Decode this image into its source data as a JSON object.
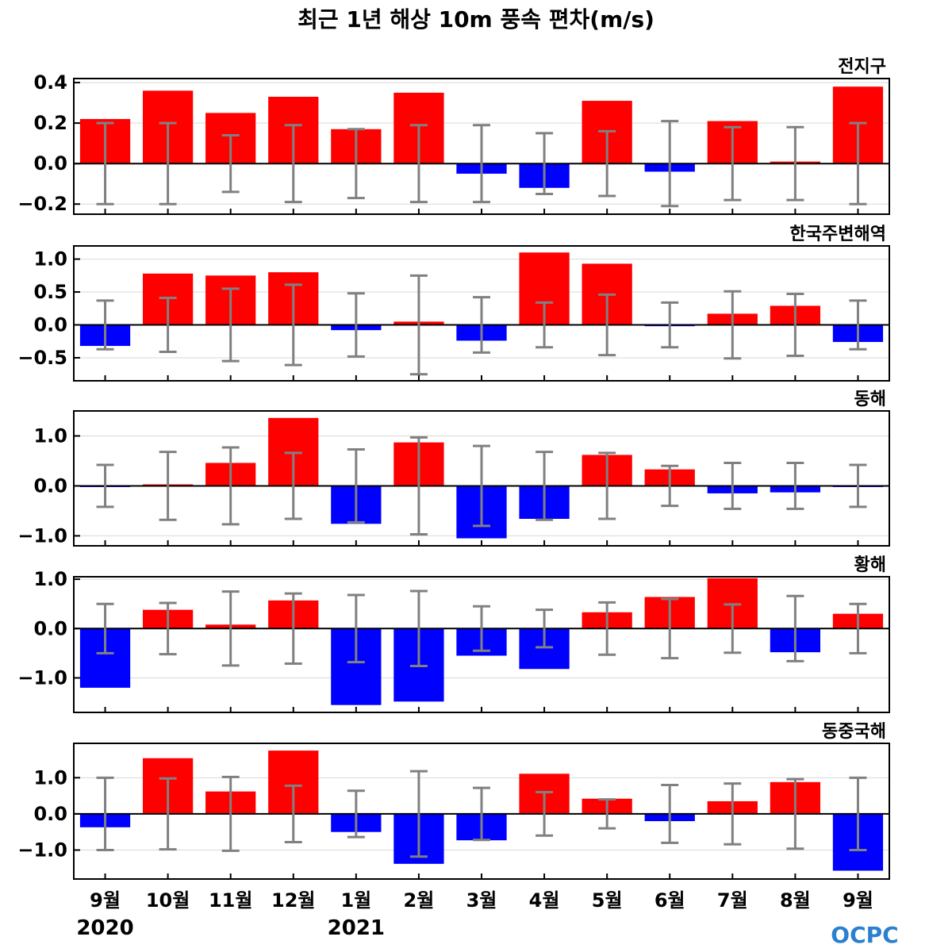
{
  "title": "최근 1년 해상 10m 풍속 편차(m/s)",
  "logo": "OCPC",
  "x_labels": [
    "9월",
    "10월",
    "11월",
    "12월",
    "1월",
    "2월",
    "3월",
    "4월",
    "5월",
    "6월",
    "7월",
    "8월",
    "9월"
  ],
  "year_labels": [
    {
      "text": "2020",
      "at_index": 0
    },
    {
      "text": "2021",
      "at_index": 4
    }
  ],
  "colors": {
    "positive": "#ff0000",
    "negative": "#0000ff",
    "errorbar": "#808080",
    "grid": "#d9d9d9"
  },
  "chart_data": [
    {
      "type": "bar",
      "region": "전지구",
      "ylim": [
        -0.25,
        0.42
      ],
      "yticks": [
        0.4,
        0.2,
        0.0,
        -0.2
      ],
      "ytick_labels": [
        "0.4",
        "0.2",
        "0.0",
        "−0.2"
      ],
      "values": [
        0.22,
        0.36,
        0.25,
        0.33,
        0.17,
        0.35,
        -0.05,
        -0.12,
        0.31,
        -0.04,
        0.21,
        0.01,
        0.38
      ],
      "error": [
        0.2,
        0.2,
        0.14,
        0.19,
        0.17,
        0.19,
        0.19,
        0.15,
        0.16,
        0.21,
        0.18,
        0.18,
        0.2
      ]
    },
    {
      "type": "bar",
      "region": "한국주변해역",
      "ylim": [
        -0.85,
        1.2
      ],
      "yticks": [
        1.0,
        0.5,
        0.0,
        -0.5
      ],
      "ytick_labels": [
        "1.0",
        "0.5",
        "0.0",
        "−0.5"
      ],
      "values": [
        -0.32,
        0.78,
        0.75,
        0.8,
        -0.08,
        0.05,
        -0.24,
        1.1,
        0.93,
        -0.02,
        0.17,
        0.29,
        -0.26
      ],
      "error": [
        0.37,
        0.41,
        0.55,
        0.61,
        0.48,
        0.75,
        0.42,
        0.34,
        0.46,
        0.34,
        0.51,
        0.47,
        0.37
      ]
    },
    {
      "type": "bar",
      "region": "동해",
      "ylim": [
        -1.2,
        1.5
      ],
      "yticks": [
        1.0,
        0.0,
        -1.0
      ],
      "ytick_labels": [
        "1.0",
        "0.0",
        "−1.0"
      ],
      "values": [
        -0.02,
        0.03,
        0.46,
        1.36,
        -0.76,
        0.87,
        -1.05,
        -0.66,
        0.62,
        0.33,
        -0.15,
        -0.13,
        -0.02
      ],
      "error": [
        0.42,
        0.68,
        0.77,
        0.66,
        0.73,
        0.97,
        0.8,
        0.68,
        0.66,
        0.4,
        0.46,
        0.46,
        0.42
      ]
    },
    {
      "type": "bar",
      "region": "황해",
      "ylim": [
        -1.7,
        1.05
      ],
      "yticks": [
        1.0,
        0.0,
        -1.0
      ],
      "ytick_labels": [
        "1.0",
        "0.0",
        "−1.0"
      ],
      "values": [
        -1.2,
        0.38,
        0.08,
        0.57,
        -1.55,
        -1.48,
        -0.55,
        -0.82,
        0.33,
        0.64,
        1.02,
        -0.48,
        0.3
      ],
      "error": [
        0.5,
        0.52,
        0.75,
        0.71,
        0.68,
        0.76,
        0.45,
        0.38,
        0.53,
        0.6,
        0.49,
        0.66,
        0.5
      ]
    },
    {
      "type": "bar",
      "region": "동중국해",
      "ylim": [
        -1.8,
        1.95
      ],
      "yticks": [
        1.0,
        0.0,
        -1.0
      ],
      "ytick_labels": [
        "1.0",
        "0.0",
        "−1.0"
      ],
      "values": [
        -0.37,
        1.54,
        0.62,
        1.75,
        -0.5,
        -1.38,
        -0.73,
        1.11,
        0.42,
        -0.2,
        0.35,
        0.88,
        -1.57
      ],
      "error": [
        1.0,
        0.98,
        1.02,
        0.78,
        0.64,
        1.18,
        0.72,
        0.6,
        0.4,
        0.8,
        0.84,
        0.96,
        1.0
      ]
    }
  ]
}
